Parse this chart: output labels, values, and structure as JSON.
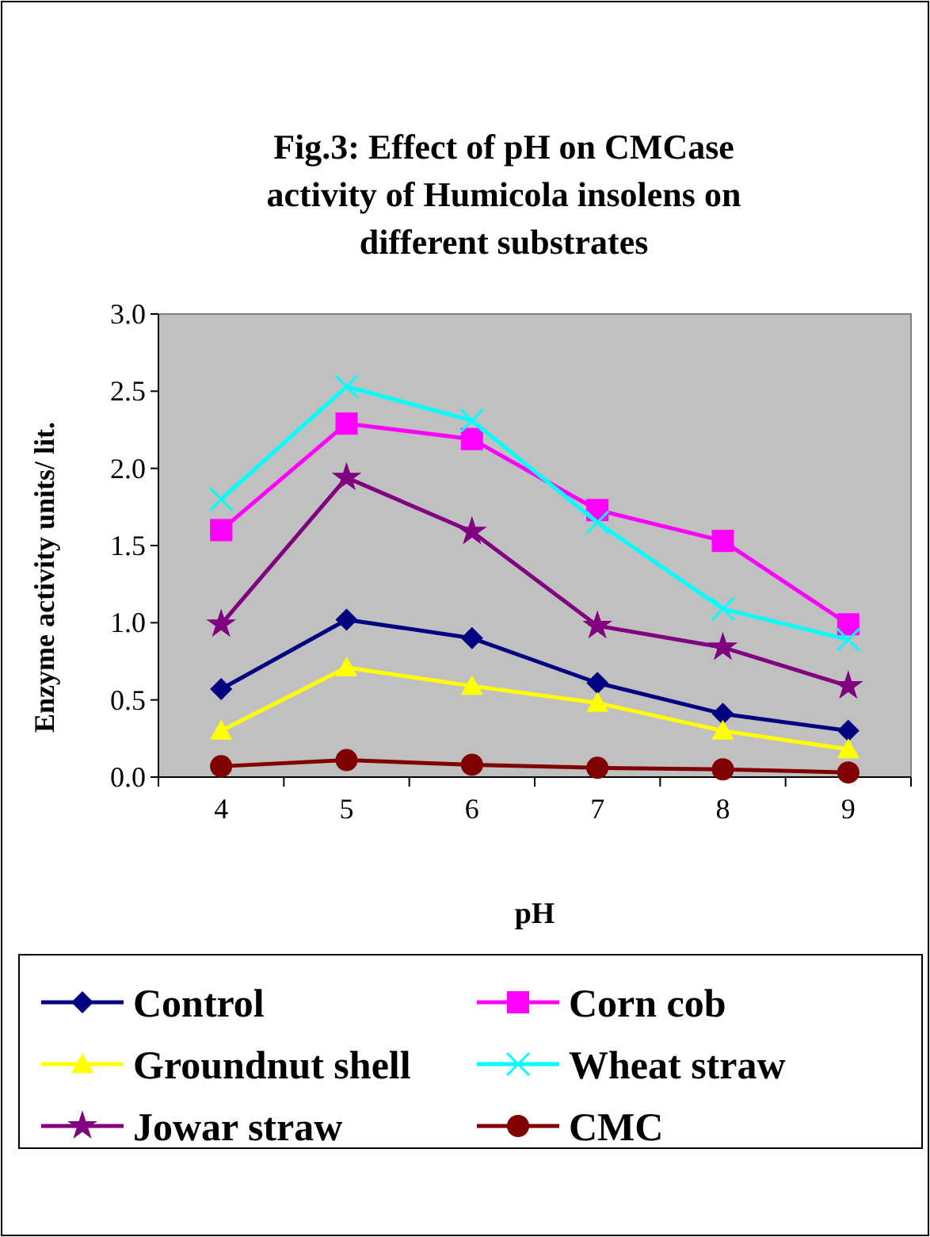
{
  "chart_data": {
    "type": "line",
    "title": "Fig.3: Effect of pH on CMCase activity of Humicola insolens on different substrates",
    "xlabel": "pH",
    "ylabel": "Enzyme activity units/ lit.",
    "categories": [
      "4",
      "5",
      "6",
      "7",
      "8",
      "9"
    ],
    "ylim": [
      0,
      3
    ],
    "yticks": [
      {
        "value": 0,
        "label": "0.0"
      },
      {
        "value": 0.5,
        "label": "0.5"
      },
      {
        "value": 1,
        "label": "1.0"
      },
      {
        "value": 1.5,
        "label": "1.5"
      },
      {
        "value": 2,
        "label": "2.0"
      },
      {
        "value": 2.5,
        "label": "2.5"
      },
      {
        "value": 3,
        "label": "3.0"
      }
    ],
    "grid": false,
    "legend": "bottom",
    "series": [
      {
        "name": "Control",
        "color": "#000080",
        "marker": "diamond",
        "values": [
          0.57,
          1.02,
          0.9,
          0.61,
          0.41,
          0.3
        ]
      },
      {
        "name": "Corn cob",
        "color": "#ff00ff",
        "marker": "square",
        "values": [
          1.6,
          2.29,
          2.19,
          1.73,
          1.53,
          0.99
        ]
      },
      {
        "name": "Groundnut shell",
        "color": "#ffff00",
        "marker": "triangle",
        "values": [
          0.3,
          0.71,
          0.59,
          0.48,
          0.3,
          0.18
        ]
      },
      {
        "name": "Wheat straw",
        "color": "#00ffff",
        "marker": "cross",
        "values": [
          1.8,
          2.53,
          2.31,
          1.65,
          1.09,
          0.89
        ]
      },
      {
        "name": "Jowar straw",
        "color": "#800080",
        "marker": "star",
        "values": [
          0.99,
          1.94,
          1.59,
          0.98,
          0.84,
          0.59
        ]
      },
      {
        "name": "CMC",
        "color": "#800000",
        "marker": "circle",
        "values": [
          0.07,
          0.11,
          0.08,
          0.06,
          0.05,
          0.03
        ]
      }
    ]
  }
}
